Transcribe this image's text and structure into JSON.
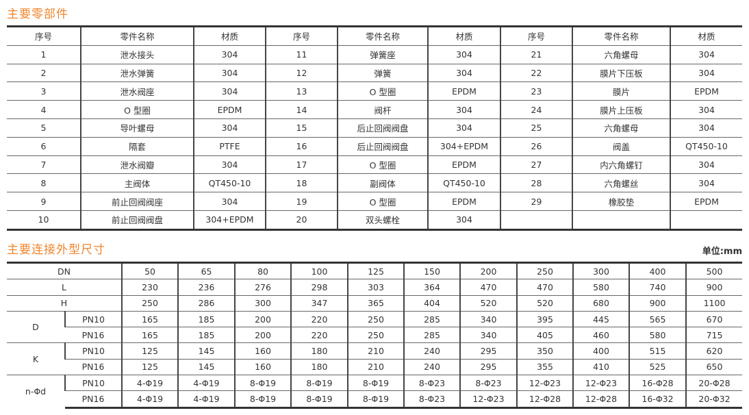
{
  "parts_section": {
    "title": "主要零部件",
    "headers": [
      "序号",
      "零件名称",
      "材质",
      "序号",
      "零件名称",
      "材质",
      "序号",
      "零件名称",
      "材质"
    ],
    "rows": [
      [
        "1",
        "泄水接头",
        "304",
        "11",
        "弹簧座",
        "304",
        "21",
        "六角螺母",
        "304"
      ],
      [
        "2",
        "泄水弹簧",
        "304",
        "12",
        "弹簧",
        "304",
        "22",
        "膜片下压板",
        "304"
      ],
      [
        "3",
        "泄水阀座",
        "304",
        "13",
        "O 型圈",
        "EPDM",
        "23",
        "膜片",
        "EPDM"
      ],
      [
        "4",
        "O 型圈",
        "EPDM",
        "14",
        "阀杆",
        "304",
        "24",
        "膜片上压板",
        "304"
      ],
      [
        "5",
        "导叶螺母",
        "304",
        "15",
        "后止回阀阀盘",
        "304",
        "25",
        "六角螺母",
        "304"
      ],
      [
        "6",
        "隔套",
        "PTFE",
        "16",
        "后止回阀阀盘",
        "304+EPDM",
        "26",
        "阀盖",
        "QT450-10"
      ],
      [
        "7",
        "泄水阀瓣",
        "304",
        "17",
        "O 型圈",
        "EPDM",
        "27",
        "内六角螺钉",
        "304"
      ],
      [
        "8",
        "主阀体",
        "QT450-10",
        "18",
        "副阀体",
        "QT450-10",
        "28",
        "六角螺丝",
        "304"
      ],
      [
        "9",
        "前止回阀阀座",
        "304",
        "19",
        "O 型圈",
        "EPDM",
        "29",
        "橡胶垫",
        "EPDM"
      ],
      [
        "10",
        "前止回阀阀盘",
        "304+EPDM",
        "20",
        "双头螺栓",
        "304",
        "",
        "",
        ""
      ]
    ]
  },
  "dims_section": {
    "title": "主要连接外型尺寸",
    "unit": "单位:mm",
    "rows": [
      {
        "label": "DN",
        "sub": "",
        "values": [
          "50",
          "65",
          "80",
          "100",
          "125",
          "150",
          "200",
          "250",
          "300",
          "400",
          "500"
        ]
      },
      {
        "label": "L",
        "sub": "",
        "values": [
          "230",
          "236",
          "276",
          "298",
          "303",
          "364",
          "470",
          "470",
          "580",
          "740",
          "900"
        ]
      },
      {
        "label": "H",
        "sub": "",
        "values": [
          "250",
          "286",
          "300",
          "347",
          "365",
          "404",
          "520",
          "520",
          "680",
          "900",
          "1100"
        ]
      },
      {
        "label": "D",
        "sub": "PN10",
        "values": [
          "165",
          "185",
          "200",
          "220",
          "250",
          "285",
          "340",
          "395",
          "445",
          "565",
          "670"
        ]
      },
      {
        "label": "",
        "sub": "PN16",
        "values": [
          "165",
          "185",
          "200",
          "220",
          "250",
          "285",
          "340",
          "405",
          "460",
          "580",
          "715"
        ]
      },
      {
        "label": "K",
        "sub": "PN10",
        "values": [
          "125",
          "145",
          "160",
          "180",
          "210",
          "240",
          "295",
          "350",
          "400",
          "515",
          "620"
        ]
      },
      {
        "label": "",
        "sub": "PN16",
        "values": [
          "125",
          "145",
          "160",
          "180",
          "210",
          "240",
          "295",
          "355",
          "410",
          "525",
          "650"
        ]
      },
      {
        "label": "n-Φd",
        "sub": "PN10",
        "values": [
          "4-Φ19",
          "4-Φ19",
          "8-Φ19",
          "8-Φ19",
          "8-Φ19",
          "8-Φ23",
          "8-Φ23",
          "12-Φ23",
          "12-Φ23",
          "16-Φ28",
          "20-Φ28"
        ]
      },
      {
        "label": "",
        "sub": "PN16",
        "values": [
          "4-Φ19",
          "4-Φ19",
          "8-Φ19",
          "8-Φ19",
          "8-Φ19",
          "8-Φ23",
          "12-Φ23",
          "12-Φ28",
          "12-Φ28",
          "16-Φ32",
          "20-Φ32"
        ]
      }
    ]
  }
}
